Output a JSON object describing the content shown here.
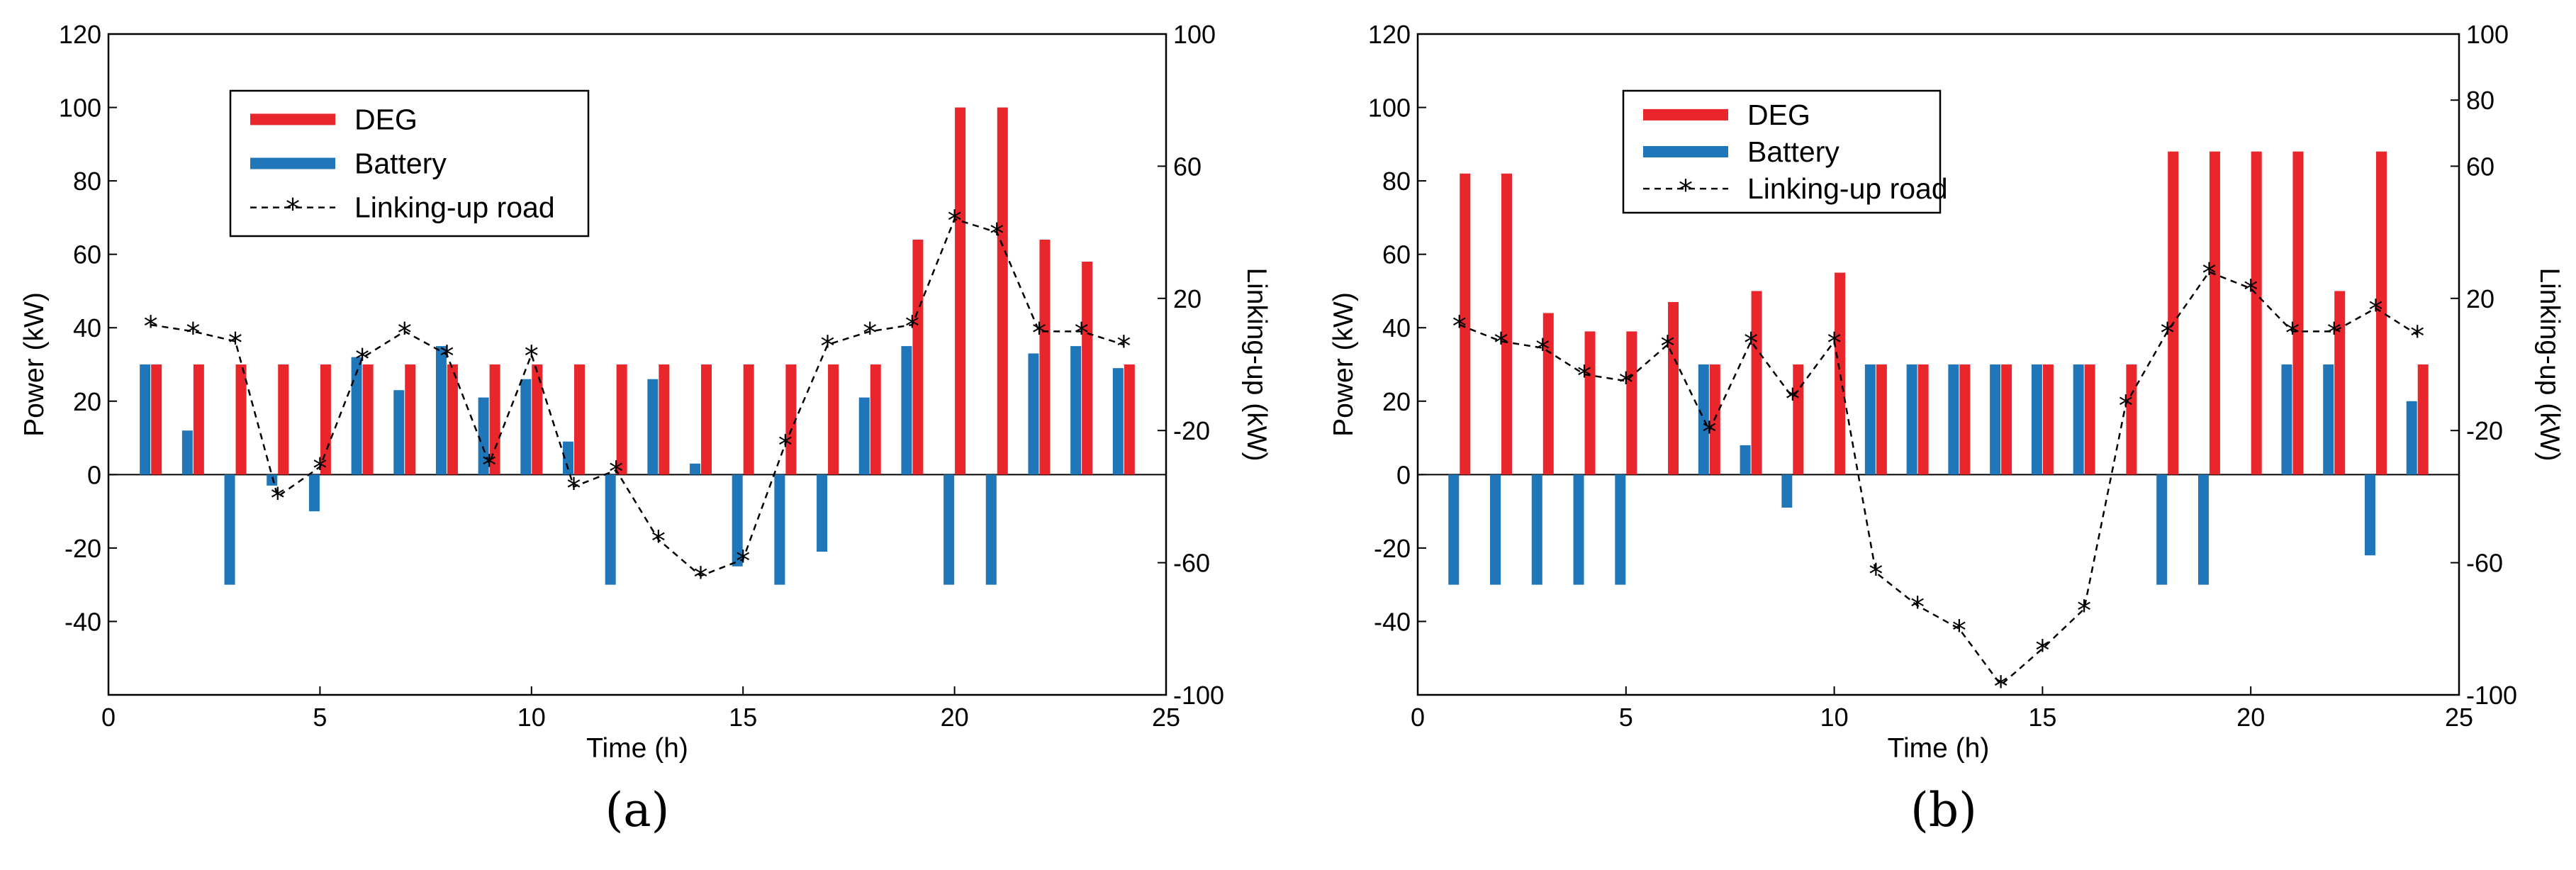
{
  "colors": {
    "deg": "#e8262b",
    "battery": "#1f77b9",
    "linking": "#000000"
  },
  "panels": [
    {
      "label": "(a)",
      "title": "",
      "xlabel": "Time (h)",
      "ylabel_left": "Power (kW)",
      "ylabel_right": "Linking-up (kW)",
      "x_ticks": [
        "0",
        "5",
        "10",
        "15",
        "20",
        "25"
      ],
      "y_ticks_left": [
        "-40",
        "-20",
        "0",
        "20",
        "40",
        "60",
        "80",
        "100",
        "120"
      ],
      "y_ticks_right": [
        "-100",
        "-60",
        "-20",
        "20",
        "60",
        "100"
      ],
      "legend": [
        "DEG",
        "Battery",
        "Linking-up road"
      ]
    },
    {
      "label": "(b)",
      "title": "",
      "xlabel": "Time (h)",
      "ylabel_left": "Power (kW)",
      "ylabel_right": "Linking-up (kW)",
      "x_ticks": [
        "0",
        "5",
        "10",
        "15",
        "20",
        "25"
      ],
      "y_ticks_left": [
        "-40",
        "-20",
        "0",
        "20",
        "40",
        "60",
        "80",
        "100",
        "120"
      ],
      "y_ticks_right": [
        "-100",
        "-60",
        "-20",
        "20",
        "60",
        "80",
        "100"
      ],
      "legend": [
        "DEG",
        "Battery",
        "Linking-up road"
      ]
    }
  ],
  "chart_data": [
    {
      "type": "bar",
      "panel": "(a)",
      "title": "",
      "xlabel": "Time (h)",
      "ylabel": "Power (kW)",
      "y2label": "Linking-up (kW)",
      "xlim": [
        0,
        25
      ],
      "ylim": [
        -60,
        120
      ],
      "y2lim": [
        -100,
        100
      ],
      "legend_position": "top-left",
      "x": [
        1,
        2,
        3,
        4,
        5,
        6,
        7,
        8,
        9,
        10,
        11,
        12,
        13,
        14,
        15,
        16,
        17,
        18,
        19,
        20,
        21,
        22,
        23,
        24
      ],
      "series": [
        {
          "name": "DEG",
          "type": "bar",
          "axis": "left",
          "values": [
            30,
            30,
            30,
            30,
            30,
            30,
            30,
            30,
            30,
            30,
            30,
            30,
            30,
            30,
            30,
            30,
            30,
            30,
            64,
            100,
            100,
            64,
            58,
            30
          ]
        },
        {
          "name": "Battery",
          "type": "bar",
          "axis": "left",
          "values": [
            30,
            12,
            -30,
            -3,
            -10,
            32,
            23,
            35,
            21,
            26,
            9,
            -30,
            26,
            3,
            -25,
            -30,
            -21,
            21,
            35,
            -30,
            -30,
            33,
            35,
            29
          ]
        },
        {
          "name": "Linking-up road",
          "type": "line",
          "axis": "right",
          "values": [
            12,
            10,
            7,
            -40,
            -31,
            2,
            10,
            3,
            -30,
            3,
            -37,
            -32,
            -53,
            -64,
            -59,
            -24,
            6,
            10,
            12,
            44,
            40,
            10,
            10,
            6
          ]
        }
      ]
    },
    {
      "type": "bar",
      "panel": "(b)",
      "title": "",
      "xlabel": "Time (h)",
      "ylabel": "Power (kW)",
      "y2label": "Linking-up (kW)",
      "xlim": [
        0,
        25
      ],
      "ylim": [
        -60,
        120
      ],
      "y2lim": [
        -100,
        100
      ],
      "legend_position": "top-left",
      "x": [
        1,
        2,
        3,
        4,
        5,
        6,
        7,
        8,
        9,
        10,
        11,
        12,
        13,
        14,
        15,
        16,
        17,
        18,
        19,
        20,
        21,
        22,
        23,
        24
      ],
      "series": [
        {
          "name": "DEG",
          "type": "bar",
          "axis": "left",
          "values": [
            82,
            82,
            44,
            39,
            39,
            47,
            30,
            50,
            30,
            55,
            30,
            30,
            30,
            30,
            30,
            30,
            30,
            88,
            88,
            88,
            88,
            50,
            88,
            30
          ]
        },
        {
          "name": "Battery",
          "type": "bar",
          "axis": "left",
          "values": [
            -30,
            -30,
            -30,
            -30,
            -30,
            0,
            30,
            8,
            -9,
            0,
            30,
            30,
            30,
            30,
            30,
            30,
            0,
            -30,
            -30,
            0,
            30,
            30,
            -22,
            20
          ]
        },
        {
          "name": "Linking-up road",
          "type": "line",
          "axis": "right",
          "values": [
            12,
            7,
            5,
            -3,
            -5,
            6,
            -20,
            7,
            -10,
            7,
            -63,
            -73,
            -80,
            -97,
            -86,
            -74,
            -12,
            10,
            28,
            23,
            10,
            10,
            17,
            9
          ]
        }
      ]
    }
  ]
}
